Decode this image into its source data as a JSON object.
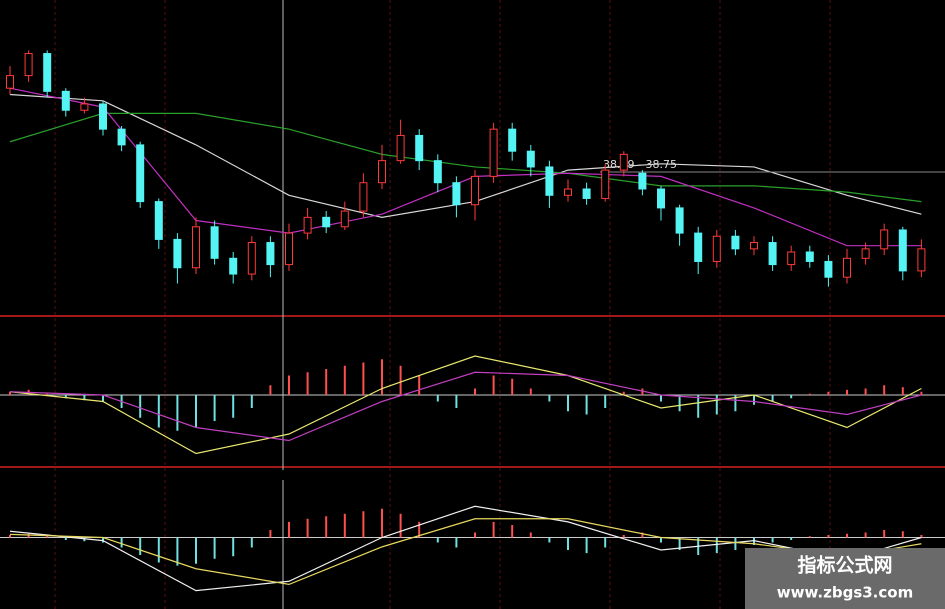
{
  "chart_data": [
    {
      "type": "candlestick",
      "up_color": "#ff3a3a",
      "down_color": "#54f4f4",
      "ylim": [
        36.5,
        41.5
      ],
      "open": [
        40.1,
        40.3,
        40.65,
        40.05,
        39.75,
        39.85,
        39.45,
        39.2,
        38.3,
        37.7,
        37.25,
        37.9,
        37.4,
        37.15,
        37.65,
        37.3,
        37.8,
        38.05,
        37.9,
        38.15,
        38.6,
        38.95,
        39.35,
        38.95,
        38.6,
        38.25,
        38.7,
        39.45,
        39.1,
        38.85,
        38.4,
        38.5,
        38.35,
        38.8,
        38.75,
        38.5,
        38.2,
        37.8,
        37.35,
        37.75,
        37.55,
        37.65,
        37.3,
        37.5,
        37.35,
        37.1,
        37.4,
        37.55,
        37.85,
        37.2
      ],
      "close": [
        40.3,
        40.65,
        40.05,
        39.75,
        39.85,
        39.45,
        39.2,
        38.3,
        37.7,
        37.25,
        37.9,
        37.4,
        37.15,
        37.65,
        37.3,
        37.8,
        38.05,
        37.9,
        38.15,
        38.6,
        38.95,
        39.35,
        38.95,
        38.6,
        38.25,
        38.7,
        39.45,
        39.1,
        38.85,
        38.4,
        38.5,
        38.35,
        38.8,
        39.05,
        38.5,
        38.2,
        37.8,
        37.35,
        37.75,
        37.55,
        37.65,
        37.3,
        37.5,
        37.35,
        37.1,
        37.4,
        37.55,
        37.85,
        37.2,
        37.55
      ],
      "high": [
        40.45,
        40.7,
        40.7,
        40.1,
        39.95,
        39.9,
        39.5,
        39.25,
        38.35,
        37.8,
        38.05,
        38.0,
        37.5,
        37.75,
        37.75,
        37.95,
        38.2,
        38.15,
        38.3,
        38.75,
        39.2,
        39.6,
        39.45,
        39.05,
        38.7,
        38.8,
        39.55,
        39.55,
        39.2,
        38.95,
        38.65,
        38.6,
        38.9,
        39.1,
        38.8,
        38.55,
        38.25,
        37.9,
        37.85,
        37.85,
        37.75,
        37.75,
        37.6,
        37.6,
        37.45,
        37.55,
        37.65,
        37.95,
        37.9,
        37.7
      ],
      "low": [
        40.0,
        40.2,
        39.95,
        39.65,
        39.7,
        39.35,
        39.1,
        38.2,
        37.55,
        37.0,
        37.15,
        37.3,
        37.0,
        37.05,
        37.1,
        37.2,
        37.7,
        37.8,
        37.85,
        38.05,
        38.5,
        38.9,
        38.8,
        38.45,
        38.05,
        38.0,
        38.6,
        38.95,
        38.7,
        38.2,
        38.3,
        38.25,
        38.3,
        38.7,
        38.4,
        38.0,
        37.6,
        37.15,
        37.25,
        37.45,
        37.45,
        37.2,
        37.2,
        37.25,
        36.95,
        37.0,
        37.3,
        37.45,
        37.05,
        37.1
      ],
      "series": [
        {
          "color": "#d8d8d8",
          "x": [
            0,
            5,
            10,
            15,
            20,
            25,
            30,
            35,
            40,
            45,
            49
          ],
          "values": [
            40.0,
            39.9,
            39.2,
            38.4,
            38.05,
            38.3,
            38.8,
            38.9,
            38.85,
            38.4,
            38.1
          ]
        },
        {
          "color": "#2aa02a",
          "x": [
            0,
            5,
            10,
            15,
            20,
            25,
            30,
            35,
            40,
            45,
            49
          ],
          "values": [
            39.25,
            39.7,
            39.7,
            39.45,
            39.05,
            38.85,
            38.75,
            38.55,
            38.55,
            38.45,
            38.3
          ]
        },
        {
          "color": "#c030c0",
          "x": [
            0,
            5,
            10,
            15,
            20,
            25,
            30,
            35,
            40,
            45,
            49
          ],
          "values": [
            40.1,
            39.8,
            38.0,
            37.8,
            38.1,
            38.7,
            38.75,
            38.7,
            38.2,
            37.6,
            37.6
          ]
        }
      ],
      "annotation": {
        "text": "38.79 - 38.75",
        "value": 38.77
      }
    },
    {
      "type": "macd",
      "up_color": "#ff5050",
      "down_color": "#70e0e0",
      "ylim": [
        -1,
        1
      ],
      "values": [
        0.05,
        0.08,
        0.02,
        -0.05,
        -0.08,
        -0.1,
        -0.2,
        -0.35,
        -0.5,
        -0.55,
        -0.5,
        -0.4,
        -0.35,
        -0.2,
        0.15,
        0.3,
        0.35,
        0.4,
        0.45,
        0.5,
        0.55,
        0.45,
        0.3,
        -0.1,
        -0.2,
        0.1,
        0.3,
        0.25,
        0.1,
        -0.1,
        -0.25,
        -0.3,
        -0.2,
        0.05,
        0.1,
        -0.1,
        -0.25,
        -0.35,
        -0.3,
        -0.25,
        -0.15,
        -0.1,
        -0.05,
        0.02,
        0.05,
        0.08,
        0.1,
        0.15,
        0.12,
        0.05
      ],
      "series": [
        {
          "color": "#e8e870",
          "x": [
            0,
            5,
            10,
            15,
            20,
            25,
            30,
            35,
            40,
            45,
            49
          ],
          "values": [
            0.05,
            -0.1,
            -0.9,
            -0.6,
            0.1,
            0.6,
            0.3,
            -0.2,
            0.0,
            -0.5,
            0.1
          ]
        },
        {
          "color": "#c040c0",
          "x": [
            0,
            5,
            10,
            15,
            20,
            25,
            30,
            35,
            40,
            45,
            49
          ],
          "values": [
            0.05,
            0.0,
            -0.5,
            -0.7,
            -0.1,
            0.35,
            0.3,
            0.0,
            -0.1,
            -0.3,
            0.0
          ]
        }
      ]
    },
    {
      "type": "macd",
      "up_color": "#ff5050",
      "down_color": "#70e0e0",
      "ylim": [
        -1,
        1
      ],
      "values": [
        0.04,
        0.06,
        0.02,
        -0.04,
        -0.06,
        -0.08,
        -0.16,
        -0.28,
        -0.4,
        -0.45,
        -0.42,
        -0.34,
        -0.3,
        -0.16,
        0.12,
        0.25,
        0.3,
        0.34,
        0.38,
        0.42,
        0.46,
        0.38,
        0.25,
        -0.08,
        -0.16,
        0.08,
        0.25,
        0.2,
        0.08,
        -0.08,
        -0.2,
        -0.25,
        -0.16,
        0.04,
        0.08,
        -0.08,
        -0.2,
        -0.28,
        -0.25,
        -0.2,
        -0.12,
        -0.08,
        -0.04,
        0.02,
        0.04,
        0.06,
        0.08,
        0.12,
        0.1,
        0.04
      ],
      "series": [
        {
          "color": "#f0f0f0",
          "x": [
            0,
            5,
            10,
            15,
            20,
            25,
            30,
            35,
            40,
            45,
            49
          ],
          "values": [
            0.1,
            -0.05,
            -0.85,
            -0.7,
            0.0,
            0.5,
            0.25,
            -0.2,
            -0.05,
            -0.35,
            0.0
          ]
        },
        {
          "color": "#e8d860",
          "x": [
            0,
            5,
            10,
            15,
            20,
            25,
            30,
            35,
            40,
            45,
            49
          ],
          "values": [
            0.05,
            0.0,
            -0.5,
            -0.75,
            -0.15,
            0.3,
            0.3,
            0.0,
            -0.1,
            -0.3,
            -0.1
          ]
        }
      ]
    }
  ],
  "watermark": {
    "title": "指标公式网",
    "url": "www.zbgs3.com"
  }
}
